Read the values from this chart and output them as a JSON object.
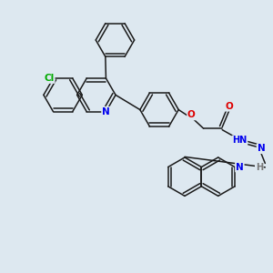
{
  "background_color": "#dde8f0",
  "bond_color": "#1a1a1a",
  "atom_colors": {
    "N": "#0000ee",
    "O": "#dd0000",
    "Cl": "#00aa00",
    "H": "#777777",
    "C": "#1a1a1a"
  },
  "figsize": [
    3.0,
    3.0
  ],
  "dpi": 100
}
